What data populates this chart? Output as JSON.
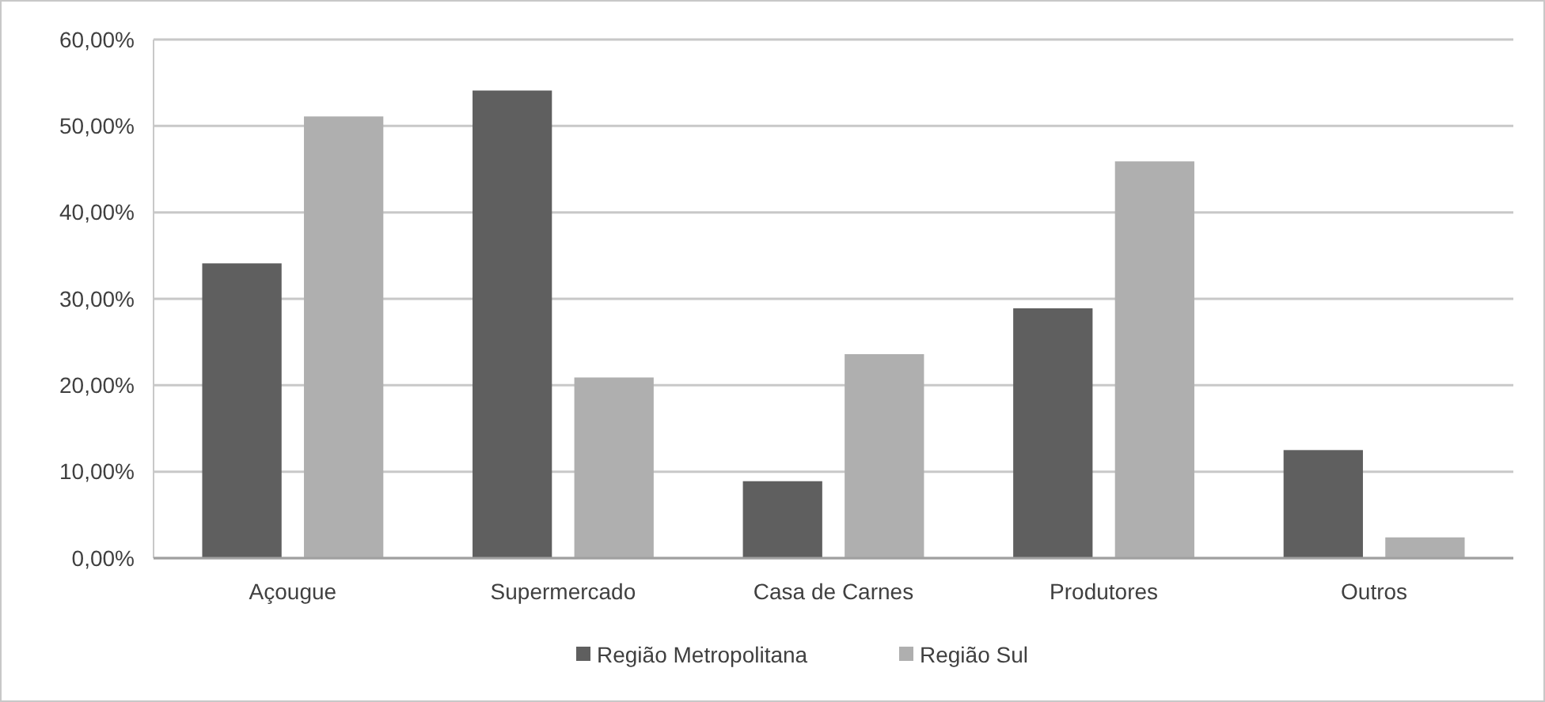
{
  "chart_data": {
    "type": "bar",
    "categories": [
      "Açougue",
      "Supermercado",
      "Casa de Carnes",
      "Produtores",
      "Outros"
    ],
    "series": [
      {
        "name": "Região Metropolitana",
        "color": "#5f5f5f",
        "values": [
          34.1,
          54.1,
          8.9,
          28.9,
          12.5
        ]
      },
      {
        "name": "Região Sul",
        "color": "#afafaf",
        "values": [
          51.1,
          20.9,
          23.6,
          45.9,
          2.4
        ]
      }
    ],
    "ylim": [
      0,
      60
    ],
    "yticks": [
      {
        "value": 0,
        "label": "0,00%"
      },
      {
        "value": 10,
        "label": "10,00%"
      },
      {
        "value": 20,
        "label": "20,00%"
      },
      {
        "value": 30,
        "label": "30,00%"
      },
      {
        "value": 40,
        "label": "40,00%"
      },
      {
        "value": 50,
        "label": "50,00%"
      },
      {
        "value": 60,
        "label": "60,00%"
      }
    ],
    "grid": "y",
    "legend": "bottom"
  }
}
